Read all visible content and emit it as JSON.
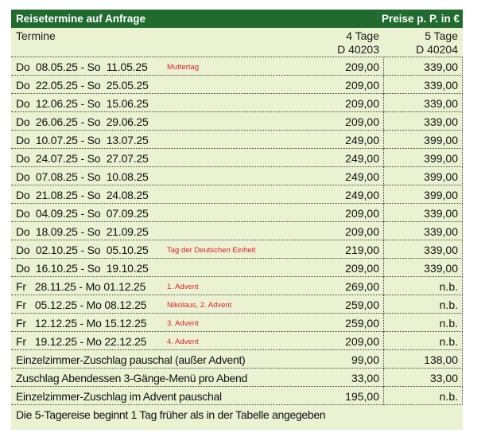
{
  "title": "Reisetermine auf Anfrage",
  "price_label": "Preise p. P. in €",
  "header": {
    "termine": "Termine",
    "col4_line1": "4 Tage",
    "col4_line2": "D 40203",
    "col5_line1": "5 Tage",
    "col5_line2": "D 40204"
  },
  "rows": [
    {
      "date": "Do  08.05.25 - So  11.05.25",
      "note": "Muttertag",
      "p4": "209,00",
      "p5": "339,00"
    },
    {
      "date": "Do  22.05.25 - So  25.05.25",
      "note": "",
      "p4": "209,00",
      "p5": "339,00"
    },
    {
      "date": "Do  12.06.25 - So  15.06.25",
      "note": "",
      "p4": "209,00",
      "p5": "339,00"
    },
    {
      "date": "Do  26.06.25 - So  29.06.25",
      "note": "",
      "p4": "209,00",
      "p5": "339,00"
    },
    {
      "date": "Do  10.07.25 - So  13.07.25",
      "note": "",
      "p4": "249,00",
      "p5": "399,00"
    },
    {
      "date": "Do  24.07.25 - So  27.07.25",
      "note": "",
      "p4": "249,00",
      "p5": "399,00"
    },
    {
      "date": "Do  07.08.25 - So  10.08.25",
      "note": "",
      "p4": "249,00",
      "p5": "399,00"
    },
    {
      "date": "Do  21.08.25 - So  24.08.25",
      "note": "",
      "p4": "249,00",
      "p5": "399,00"
    },
    {
      "date": "Do  04.09.25 - So  07.09.25",
      "note": "",
      "p4": "209,00",
      "p5": "339,00"
    },
    {
      "date": "Do  18.09.25 - So  21.09.25",
      "note": "",
      "p4": "209,00",
      "p5": "339,00"
    },
    {
      "date": "Do  02.10.25 - So  05.10.25",
      "note": "Tag der Deutschen Einheit",
      "p4": "219,00",
      "p5": "339,00"
    },
    {
      "date": "Do  16.10.25 - So  19.10.25",
      "note": "",
      "p4": "209,00",
      "p5": "339,00"
    },
    {
      "date": "Fr   28.11.25 - Mo 01.12.25",
      "note": "1. Advent",
      "p4": "269,00",
      "p5": "n.b."
    },
    {
      "date": "Fr   05.12.25 - Mo 08.12.25",
      "note": "Nikolaus, 2. Advent",
      "p4": "259,00",
      "p5": "n.b."
    },
    {
      "date": "Fr   12.12.25 - Mo 15.12.25",
      "note": "3. Advent",
      "p4": "259,00",
      "p5": "n.b."
    },
    {
      "date": "Fr   19.12.25 - Mo 22.12.25",
      "note": "4. Advent",
      "p4": "209,00",
      "p5": "n.b."
    },
    {
      "date": "Einzelzimmer-Zuschlag pauschal (außer Advent)",
      "note": "",
      "p4": "99,00",
      "p5": "138,00"
    },
    {
      "date": "Zuschlag Abendessen 3-Gänge-Menü pro Abend",
      "note": "",
      "p4": "33,00",
      "p5": "33,00"
    },
    {
      "date": "Einzelzimmer-Zuschlag im Advent pauschal",
      "note": "",
      "p4": "195,00",
      "p5": "n.b."
    }
  ],
  "footer_note": "Die 5-Tagereise beginnt 1 Tag früher als in der Tabelle angegeben",
  "colors": {
    "title_bg": "#216b2f",
    "sheet_bg": "#eaf2d2",
    "note": "#e0202a"
  }
}
